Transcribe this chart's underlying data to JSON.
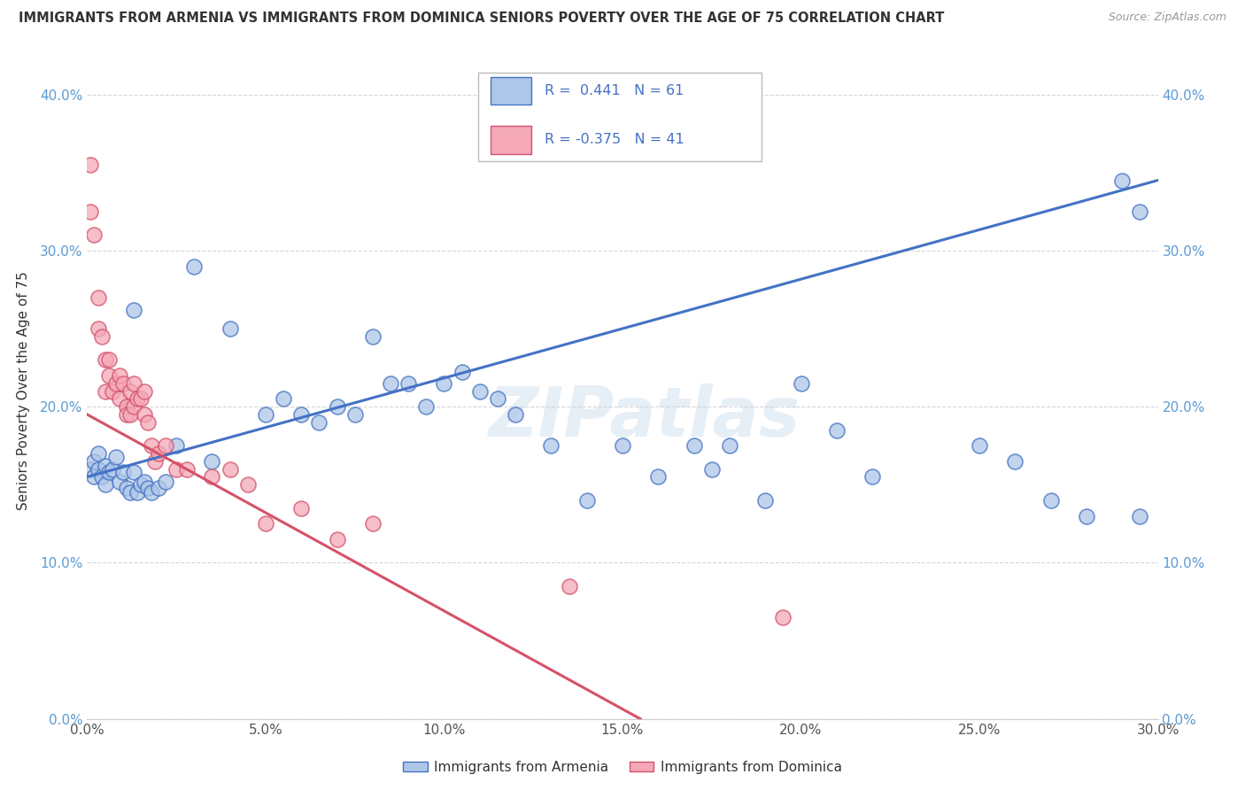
{
  "title": "IMMIGRANTS FROM ARMENIA VS IMMIGRANTS FROM DOMINICA SENIORS POVERTY OVER THE AGE OF 75 CORRELATION CHART",
  "source": "Source: ZipAtlas.com",
  "ylabel": "Seniors Poverty Over the Age of 75",
  "xlim": [
    0.0,
    0.3
  ],
  "ylim": [
    0.0,
    0.42
  ],
  "x_ticks": [
    0.0,
    0.05,
    0.1,
    0.15,
    0.2,
    0.25,
    0.3
  ],
  "y_ticks": [
    0.0,
    0.1,
    0.2,
    0.3,
    0.4
  ],
  "x_tick_labels": [
    "0.0%",
    "5.0%",
    "10.0%",
    "15.0%",
    "20.0%",
    "25.0%",
    "30.0%"
  ],
  "y_tick_labels": [
    "0.0%",
    "10.0%",
    "20.0%",
    "30.0%",
    "40.0%"
  ],
  "armenia_color": "#aec6e8",
  "dominica_color": "#f4a8b8",
  "armenia_line_color": "#4472c4",
  "dominica_line_color": "#d4526a",
  "armenia_R": 0.441,
  "armenia_N": 61,
  "dominica_R": -0.375,
  "dominica_N": 41,
  "background_color": "#ffffff",
  "grid_color": "#cccccc",
  "armenia_line_x0": 0.0,
  "armenia_line_y0": 0.155,
  "armenia_line_x1": 0.3,
  "armenia_line_y1": 0.345,
  "dominica_line_x0": 0.0,
  "dominica_line_y0": 0.195,
  "dominica_line_x1": 0.155,
  "dominica_line_y1": 0.0,
  "armenia_x": [
    0.001,
    0.002,
    0.002,
    0.003,
    0.003,
    0.004,
    0.005,
    0.005,
    0.006,
    0.007,
    0.008,
    0.009,
    0.01,
    0.011,
    0.012,
    0.013,
    0.013,
    0.014,
    0.015,
    0.016,
    0.017,
    0.018,
    0.02,
    0.022,
    0.025,
    0.03,
    0.035,
    0.04,
    0.05,
    0.055,
    0.06,
    0.065,
    0.07,
    0.075,
    0.08,
    0.085,
    0.09,
    0.095,
    0.1,
    0.105,
    0.11,
    0.115,
    0.12,
    0.13,
    0.14,
    0.15,
    0.16,
    0.17,
    0.175,
    0.18,
    0.19,
    0.2,
    0.21,
    0.22,
    0.25,
    0.26,
    0.27,
    0.28,
    0.29,
    0.295,
    0.295
  ],
  "armenia_y": [
    0.16,
    0.155,
    0.165,
    0.16,
    0.17,
    0.155,
    0.15,
    0.162,
    0.158,
    0.16,
    0.168,
    0.152,
    0.158,
    0.148,
    0.145,
    0.158,
    0.262,
    0.145,
    0.15,
    0.152,
    0.148,
    0.145,
    0.148,
    0.152,
    0.175,
    0.29,
    0.165,
    0.25,
    0.195,
    0.205,
    0.195,
    0.19,
    0.2,
    0.195,
    0.245,
    0.215,
    0.215,
    0.2,
    0.215,
    0.222,
    0.21,
    0.205,
    0.195,
    0.175,
    0.14,
    0.175,
    0.155,
    0.175,
    0.16,
    0.175,
    0.14,
    0.215,
    0.185,
    0.155,
    0.175,
    0.165,
    0.14,
    0.13,
    0.345,
    0.325,
    0.13
  ],
  "dominica_x": [
    0.001,
    0.001,
    0.002,
    0.003,
    0.003,
    0.004,
    0.005,
    0.005,
    0.006,
    0.006,
    0.007,
    0.008,
    0.009,
    0.009,
    0.01,
    0.011,
    0.011,
    0.012,
    0.012,
    0.013,
    0.013,
    0.014,
    0.015,
    0.016,
    0.016,
    0.017,
    0.018,
    0.019,
    0.02,
    0.022,
    0.025,
    0.028,
    0.035,
    0.04,
    0.045,
    0.05,
    0.06,
    0.07,
    0.08,
    0.135,
    0.195
  ],
  "dominica_y": [
    0.355,
    0.325,
    0.31,
    0.25,
    0.27,
    0.245,
    0.21,
    0.23,
    0.22,
    0.23,
    0.21,
    0.215,
    0.205,
    0.22,
    0.215,
    0.2,
    0.195,
    0.195,
    0.21,
    0.215,
    0.2,
    0.205,
    0.205,
    0.21,
    0.195,
    0.19,
    0.175,
    0.165,
    0.17,
    0.175,
    0.16,
    0.16,
    0.155,
    0.16,
    0.15,
    0.125,
    0.135,
    0.115,
    0.125,
    0.085,
    0.065
  ]
}
